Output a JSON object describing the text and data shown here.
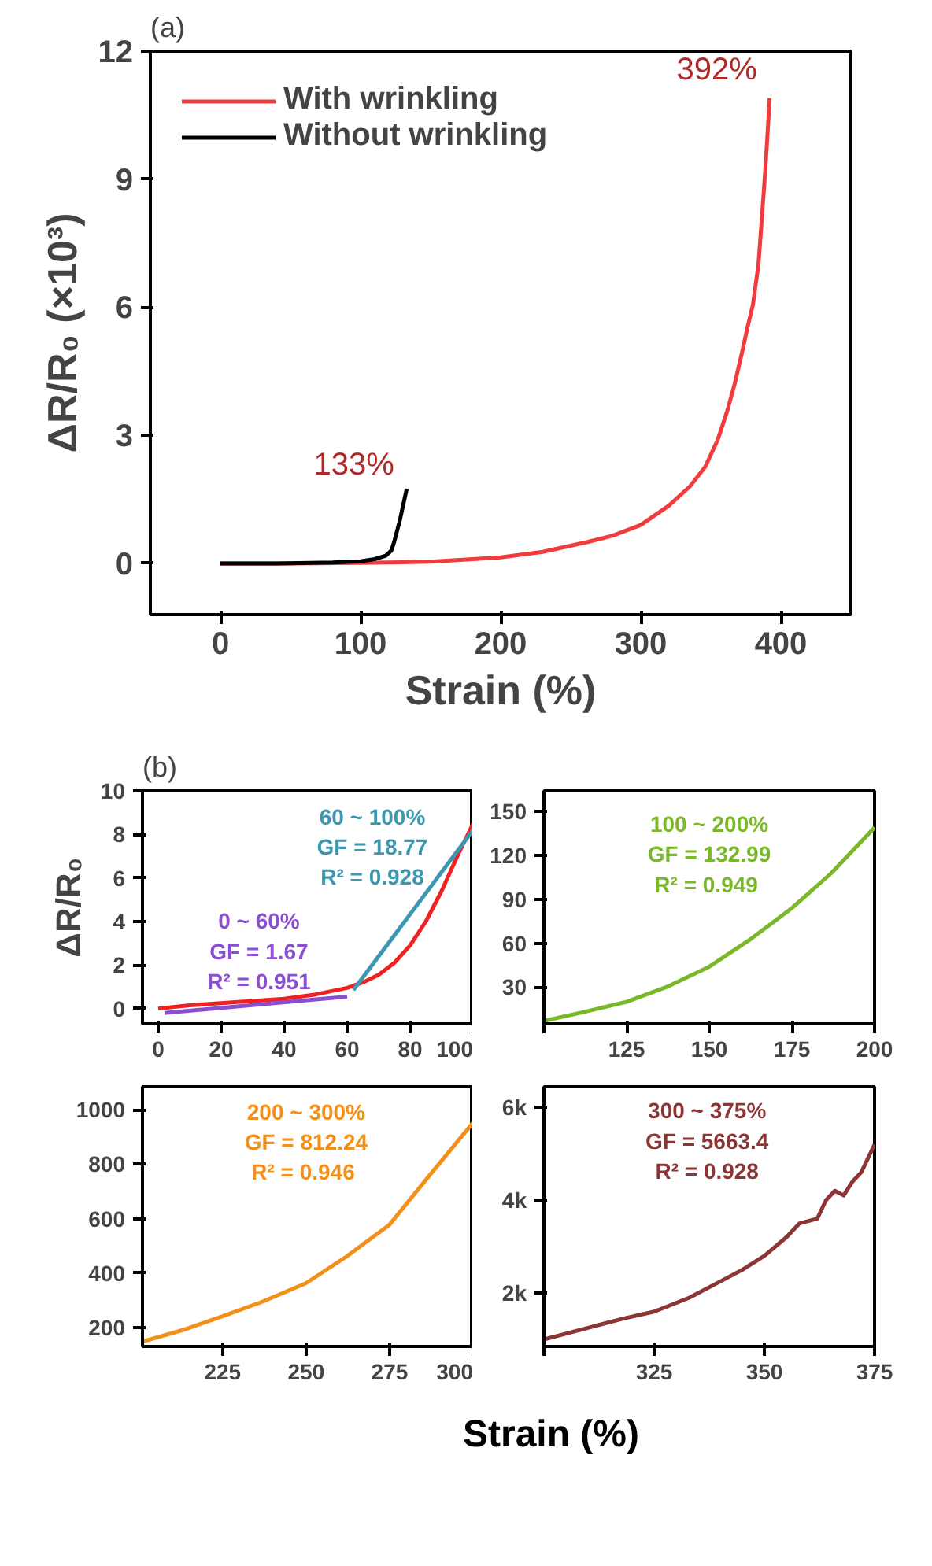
{
  "chart_data": [
    {
      "type": "line",
      "title": "(a)",
      "xlabel": "Strain (%)",
      "ylabel": "ΔR/R₀ (×10³)",
      "xlim": [
        -50,
        450
      ],
      "ylim": [
        -1.2,
        12
      ],
      "xticks": [
        0,
        100,
        200,
        300,
        400
      ],
      "yticks": [
        0,
        3,
        6,
        9,
        12
      ],
      "legend": "top left",
      "grid": false,
      "series": [
        {
          "name": "With wrinkling",
          "color": "#f03c3c",
          "x": [
            0,
            50,
            100,
            150,
            180,
            200,
            230,
            262,
            280,
            300,
            320,
            335,
            346,
            355,
            362,
            367,
            372,
            376,
            380,
            384,
            388,
            390,
            392
          ],
          "values": [
            0,
            0,
            0.01,
            0.04,
            0.1,
            0.14,
            0.27,
            0.5,
            0.65,
            0.9,
            1.35,
            1.8,
            2.26,
            2.9,
            3.6,
            4.2,
            4.9,
            5.5,
            6.05,
            7.0,
            8.8,
            9.8,
            10.9
          ]
        },
        {
          "name": "Without wrinkling",
          "color": "#000000",
          "x": [
            0,
            40,
            80,
            100,
            110,
            118,
            122,
            124,
            126,
            128,
            130,
            132,
            133
          ],
          "values": [
            0,
            0,
            0.02,
            0.05,
            0.1,
            0.18,
            0.3,
            0.5,
            0.75,
            1.0,
            1.3,
            1.6,
            1.75
          ]
        }
      ],
      "annotations": [
        {
          "text": "392%",
          "x": 392,
          "y": 11
        },
        {
          "text": "133%",
          "x": 133,
          "y": 1.75
        }
      ]
    },
    {
      "type": "line",
      "title": "(b)",
      "ylabel": "ΔR/R₀",
      "xlim": [
        -5,
        100
      ],
      "ylim": [
        -0.7,
        10
      ],
      "xticks": [
        0,
        20,
        40,
        60,
        80,
        100
      ],
      "yticks": [
        0,
        2,
        4,
        6,
        8,
        10
      ],
      "grid": false,
      "series": [
        {
          "color": "#ee2222",
          "x": [
            0,
            10,
            20,
            30,
            40,
            50,
            60,
            65,
            70,
            75,
            80,
            85,
            90,
            95,
            100
          ],
          "values": [
            0,
            0.15,
            0.25,
            0.35,
            0.45,
            0.65,
            0.95,
            1.2,
            1.55,
            2.1,
            2.9,
            4.0,
            5.4,
            7.0,
            8.5
          ]
        },
        {
          "color": "#8a4fd0",
          "x": [
            2,
            60
          ],
          "values": [
            -0.2,
            0.55
          ]
        },
        {
          "color": "#3b98b0",
          "x": [
            62,
            100
          ],
          "values": [
            0.85,
            8.2
          ]
        }
      ],
      "annotations": [
        "0 ~ 60%\nGF = 1.67\nR² = 0.951",
        "60 ~ 100%\nGF = 18.77\nR² = 0.928"
      ]
    },
    {
      "type": "line",
      "xlim": [
        100,
        200
      ],
      "ylim": [
        5,
        164
      ],
      "xticks": [
        {
          "value": 100,
          "label": null
        },
        125,
        150,
        175,
        200
      ],
      "yticks": [
        30,
        60,
        90,
        120,
        150
      ],
      "grid": false,
      "series": [
        {
          "color": "#7ab82a",
          "x": [
            100,
            112,
            125,
            137,
            150,
            162,
            175,
            187,
            200
          ],
          "values": [
            7,
            13,
            20,
            30,
            44,
            62,
            84,
            108,
            139
          ]
        }
      ],
      "annotations": [
        "100 ~ 200%\nGF = 132.99\nR² =  0.949"
      ]
    },
    {
      "type": "line",
      "xlabel": "Strain (%)",
      "xlim": [
        201,
        300
      ],
      "ylim": [
        130,
        1085
      ],
      "xticks": [
        225,
        250,
        275,
        300
      ],
      "yticks": [
        200,
        400,
        600,
        800,
        1000
      ],
      "grid": false,
      "series": [
        {
          "color": "#f39019",
          "x": [
            201,
            213,
            225,
            237,
            250,
            262,
            275,
            287,
            300
          ],
          "values": [
            148,
            190,
            241,
            295,
            363,
            460,
            578,
            760,
            953
          ]
        }
      ],
      "annotations": [
        "200 ~ 300%\nGF = 812.24\nR² =  0.946"
      ]
    },
    {
      "type": "line",
      "xlim": [
        300,
        375
      ],
      "ylim": [
        850,
        6440
      ],
      "xticks": [
        {
          "value": 300,
          "label": null
        },
        325,
        350,
        375
      ],
      "yticks": [
        {
          "value": 2000,
          "label": "2k"
        },
        {
          "value": 4000,
          "label": "4k"
        },
        {
          "value": 6000,
          "label": "6k"
        }
      ],
      "grid": false,
      "series": [
        {
          "color": "#8c3535",
          "x": [
            300,
            310,
            318,
            325,
            333,
            340,
            345,
            350,
            355,
            358,
            362,
            364,
            366,
            368,
            370,
            372,
            375
          ],
          "values": [
            1000,
            1250,
            1450,
            1600,
            1900,
            2250,
            2500,
            2800,
            3200,
            3500,
            3600,
            4000,
            4200,
            4100,
            4400,
            4600,
            5200
          ]
        }
      ],
      "annotations": [
        "300 ~ 375%\nGF = 5663.4\nR² = 0.928"
      ]
    }
  ]
}
